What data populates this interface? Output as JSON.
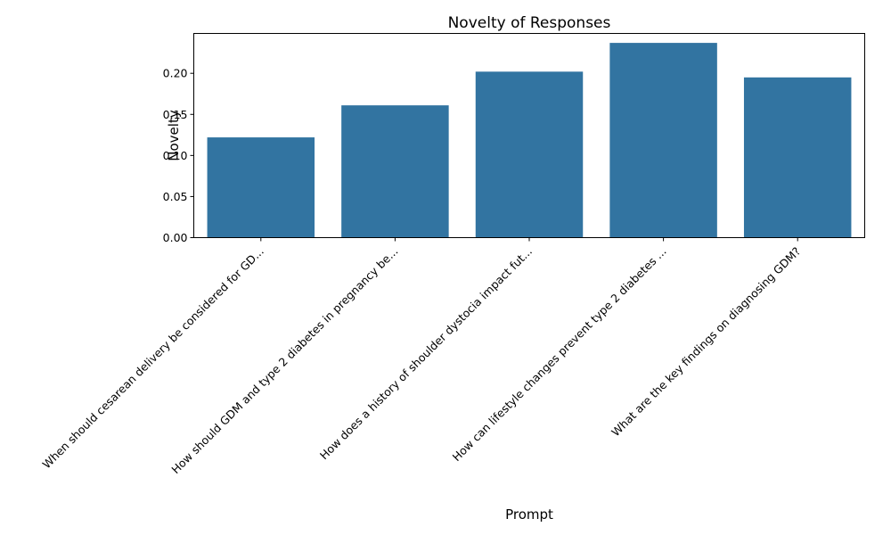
{
  "chart_data": {
    "type": "bar",
    "title": "Novelty of Responses",
    "xlabel": "Prompt",
    "ylabel": "Novelty",
    "categories": [
      "When should cesarean delivery be considered for GD...",
      "How should GDM and type 2 diabetes in pregnancy be...",
      "How does a history of shoulder dystocia impact fut...",
      "How can lifestyle changes prevent type 2 diabetes ...",
      "What are the key findings on diagnosing GDM?"
    ],
    "values": [
      0.122,
      0.161,
      0.202,
      0.237,
      0.195
    ],
    "ylim": [
      0,
      0.2485
    ],
    "yticks": [
      "0.00",
      "0.05",
      "0.10",
      "0.15",
      "0.20"
    ],
    "bar_color": "#3274a1",
    "grid": false,
    "legend": "none"
  }
}
